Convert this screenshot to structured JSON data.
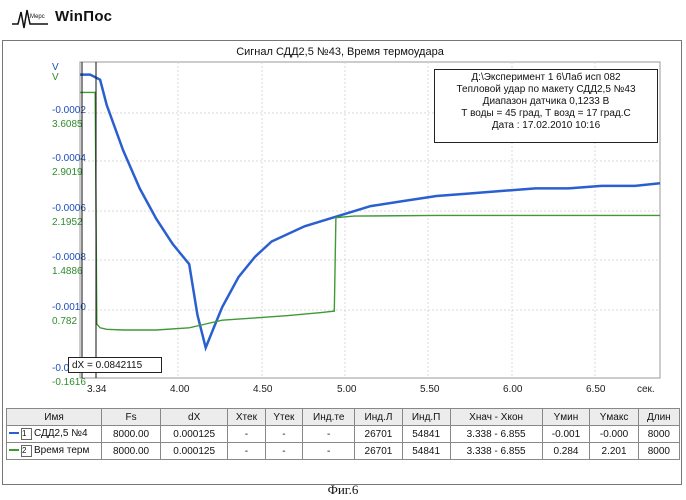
{
  "app": {
    "title": "WinПос",
    "logo_text": "Мерс"
  },
  "chart": {
    "title": "Сигнал СДД2,5 №43, Время термоудара",
    "left_axis_top_label_blue": "V",
    "left_axis_top_label_green": "V",
    "x_unit": "сек.",
    "info_box": [
      "Д:\\Эксперимент 1 6\\Лаб исп 082",
      "Тепловой удар по макету СДД2,5 №43",
      "Диапазон датчика 0,1233 В",
      "Т воды = 45 град, Т возд = 17 град.С",
      "Дата : 17.02.2010 10:16"
    ],
    "cursor_readout": "dX = 0.0842115"
  },
  "chart_data": {
    "type": "line",
    "title": "Сигнал СДД2,5 №43, Время термоудара",
    "xlabel": "сек.",
    "ylabel": "V",
    "x_ticks": [
      "3.34",
      "4.00",
      "4.50",
      "5.00",
      "5.50",
      "6.00",
      "6.50"
    ],
    "y_ticks_blue": [
      "-0.0002",
      "-0.0004",
      "-0.0006",
      "-0.0008",
      "-0.0010",
      "-0.0013"
    ],
    "y_ticks_green": [
      "3.6085",
      "2.9019",
      "2.1952",
      "1.4886",
      "0.782",
      "-0.1616"
    ],
    "xlim": [
      3.338,
      6.855
    ],
    "grid": true,
    "series": [
      {
        "name": "СДД2,5 №4",
        "color": "#2a5fd0",
        "x": [
          3.338,
          3.4,
          3.46,
          3.5,
          3.6,
          3.7,
          3.8,
          3.9,
          4.0,
          4.05,
          4.1,
          4.15,
          4.2,
          4.3,
          4.4,
          4.5,
          4.7,
          4.9,
          5.1,
          5.3,
          5.5,
          5.7,
          5.9,
          6.1,
          6.3,
          6.5,
          6.7,
          6.855
        ],
        "y": [
          -0.0001,
          -0.0001,
          -0.00012,
          -0.00022,
          -0.0004,
          -0.00055,
          -0.00067,
          -0.00077,
          -0.00085,
          -0.00105,
          -0.00118,
          -0.0011,
          -0.00102,
          -0.0009,
          -0.00082,
          -0.00076,
          -0.0007,
          -0.00066,
          -0.00062,
          -0.0006,
          -0.00058,
          -0.00057,
          -0.00056,
          -0.00055,
          -0.00055,
          -0.00054,
          -0.00054,
          -0.00053
        ]
      },
      {
        "name": "Время терм",
        "color": "#3f9a35",
        "x": [
          3.338,
          3.43,
          3.44,
          3.46,
          3.5,
          3.6,
          3.8,
          4.0,
          4.1,
          4.2,
          4.4,
          4.6,
          4.8,
          4.88,
          4.89,
          5.0,
          5.5,
          6.0,
          6.5,
          6.855
        ],
        "y": [
          3.6,
          3.6,
          0.55,
          0.5,
          0.48,
          0.47,
          0.47,
          0.5,
          0.55,
          0.6,
          0.63,
          0.66,
          0.7,
          0.72,
          1.95,
          1.97,
          1.98,
          1.98,
          1.98,
          1.98
        ]
      }
    ]
  },
  "table": {
    "headers": [
      "Имя",
      "Fs",
      "dX",
      "Xтек",
      "Yтек",
      "Инд.те",
      "Инд.Л",
      "Инд.П",
      "Xнач - Xкон",
      "Yмин",
      "Yмакс",
      "Длин"
    ],
    "rows": [
      {
        "index": "1",
        "name": "СДД2,5 №4",
        "fs": "8000.00",
        "dx": "0.000125",
        "xtek": "-",
        "ytek": "-",
        "indte": "-",
        "indl": "26701",
        "indp": "54841",
        "range": "3.338 - 6.855",
        "ymin": "-0.001",
        "ymax": "-0.000",
        "len": "8000",
        "color": "#2a5fd0"
      },
      {
        "index": "2",
        "name": "Время терм",
        "fs": "8000.00",
        "dx": "0.000125",
        "xtek": "-",
        "ytek": "-",
        "indte": "-",
        "indl": "26701",
        "indp": "54841",
        "range": "3.338 - 6.855",
        "ymin": "0.284",
        "ymax": "2.201",
        "len": "8000",
        "color": "#3f9a35"
      }
    ]
  },
  "caption": "Фиг.6"
}
